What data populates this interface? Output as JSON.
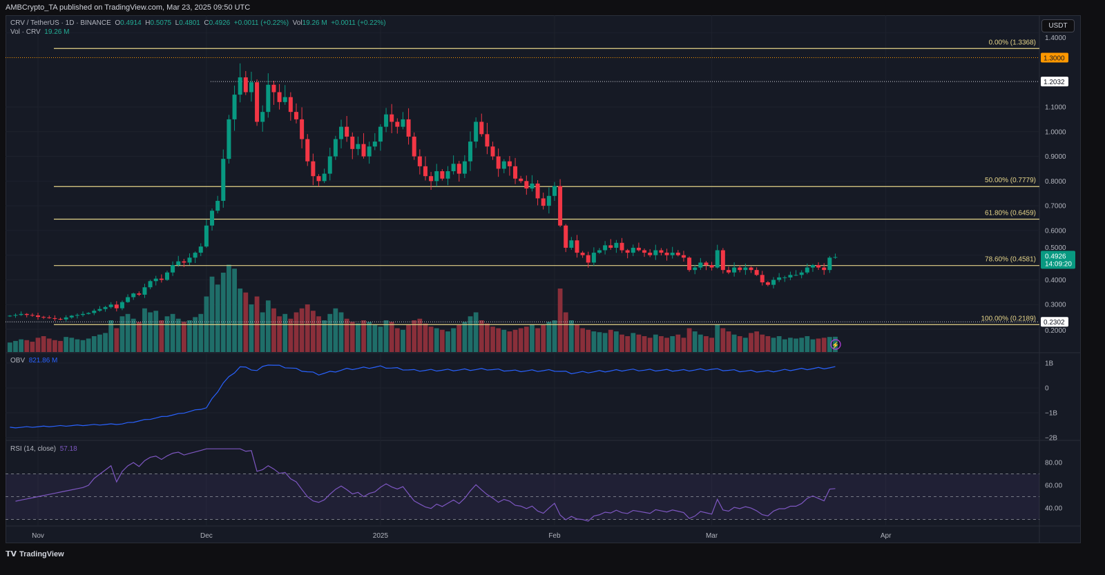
{
  "header": {
    "published": "AMBCrypto_TA published on TradingView.com, Mar 23, 2025 09:50 UTC"
  },
  "legend": {
    "symbol": "CRV / TetherUS · 1D · BINANCE",
    "o_label": "O",
    "o": "0.4914",
    "h_label": "H",
    "h": "0.5075",
    "l_label": "L",
    "l": "0.4801",
    "c_label": "C",
    "c": "0.4926",
    "change": "+0.0011 (+0.22%)",
    "vol_label": "Vol",
    "vol": "19.26 M",
    "vol_change": "+0.0011 (+0.22%)",
    "vol_line_label": "Vol · CRV",
    "vol_line_value": "19.26 M"
  },
  "currency_button": "USDT",
  "obv": {
    "label": "OBV",
    "value": "821.86 M",
    "ticks": [
      "1B",
      "0",
      "−1B",
      "−2B"
    ]
  },
  "rsi": {
    "label": "RSI (14, close)",
    "value": "57.18",
    "ticks": [
      "80.00",
      "60.00",
      "40.00"
    ]
  },
  "price_axis": {
    "ticks": [
      "1.4000",
      "1.1000",
      "1.0000",
      "0.9000",
      "0.8000",
      "0.7000",
      "0.6000",
      "0.5000",
      "0.4000",
      "0.3000",
      "0.2000"
    ],
    "tick_values": [
      1.4,
      1.1,
      1.0,
      0.9,
      0.8,
      0.7,
      0.6,
      0.5,
      0.4,
      0.3,
      0.2
    ]
  },
  "price_tags": [
    {
      "text": "1.3000",
      "value": 1.3,
      "bg": "#ff9800",
      "fg": "#131722"
    },
    {
      "text": "1.2032",
      "value": 1.2032,
      "bg": "#ffffff",
      "fg": "#131722"
    },
    {
      "text": "0.2302",
      "value": 0.2302,
      "bg": "#ffffff",
      "fg": "#131722"
    }
  ],
  "last_price": {
    "text": "0.4926",
    "countdown": "14:09:20",
    "value": 0.4926,
    "bg": "#089981"
  },
  "fib_levels": [
    {
      "label": "0.00% (1.3368)",
      "value": 1.3368
    },
    {
      "label": "50.00% (0.7779)",
      "value": 0.7779
    },
    {
      "label": "61.80% (0.6459)",
      "value": 0.6459
    },
    {
      "label": "78.60% (0.4581)",
      "value": 0.4581
    },
    {
      "label": "100.00% (0.2189)",
      "value": 0.2189
    }
  ],
  "time_axis": [
    {
      "label": "Nov",
      "day": 5
    },
    {
      "label": "Dec",
      "day": 35
    },
    {
      "label": "2025",
      "day": 66
    },
    {
      "label": "Feb",
      "day": 97
    },
    {
      "label": "Mar",
      "day": 125
    },
    {
      "label": "Apr",
      "day": 156
    }
  ],
  "footer": {
    "brand": "TradingView"
  },
  "colors": {
    "up": "#089981",
    "down": "#f23645",
    "vol_up": "#1f6e69",
    "vol_down": "#8a2f3a",
    "fib": "#e6d58a",
    "obv": "#2962ff",
    "rsi": "#7e57c2"
  },
  "chart_data": {
    "type": "candlestick",
    "start_date": "2024-10-27",
    "interval": "1D",
    "close": [
      0.255,
      0.258,
      0.262,
      0.258,
      0.256,
      0.25,
      0.248,
      0.245,
      0.242,
      0.24,
      0.248,
      0.255,
      0.258,
      0.262,
      0.266,
      0.275,
      0.282,
      0.29,
      0.3,
      0.285,
      0.31,
      0.33,
      0.345,
      0.34,
      0.37,
      0.395,
      0.405,
      0.4,
      0.43,
      0.46,
      0.475,
      0.47,
      0.49,
      0.51,
      0.535,
      0.62,
      0.68,
      0.72,
      0.89,
      1.05,
      1.15,
      1.22,
      1.16,
      1.2,
      1.04,
      1.08,
      1.19,
      1.16,
      1.12,
      1.14,
      1.08,
      1.05,
      0.97,
      0.88,
      0.82,
      0.8,
      0.83,
      0.9,
      0.97,
      1.02,
      0.98,
      0.93,
      0.95,
      0.9,
      0.94,
      0.96,
      1.02,
      1.07,
      1.04,
      1.02,
      1.05,
      0.98,
      0.9,
      0.86,
      0.82,
      0.8,
      0.84,
      0.81,
      0.84,
      0.87,
      0.83,
      0.88,
      0.96,
      1.04,
      0.99,
      0.94,
      0.9,
      0.85,
      0.88,
      0.86,
      0.81,
      0.8,
      0.77,
      0.79,
      0.73,
      0.7,
      0.74,
      0.78,
      0.62,
      0.53,
      0.56,
      0.51,
      0.5,
      0.47,
      0.51,
      0.52,
      0.54,
      0.53,
      0.55,
      0.52,
      0.51,
      0.53,
      0.52,
      0.51,
      0.5,
      0.52,
      0.51,
      0.5,
      0.51,
      0.5,
      0.49,
      0.44,
      0.45,
      0.47,
      0.46,
      0.45,
      0.52,
      0.44,
      0.43,
      0.45,
      0.44,
      0.45,
      0.44,
      0.42,
      0.39,
      0.38,
      0.4,
      0.41,
      0.41,
      0.42,
      0.42,
      0.43,
      0.45,
      0.46,
      0.45,
      0.44,
      0.49,
      0.4926
    ],
    "volume_m": [
      12,
      14,
      16,
      15,
      13,
      18,
      20,
      17,
      15,
      14,
      19,
      18,
      16,
      15,
      17,
      20,
      22,
      24,
      40,
      30,
      45,
      48,
      42,
      38,
      55,
      50,
      52,
      40,
      45,
      48,
      42,
      38,
      40,
      44,
      48,
      70,
      95,
      85,
      100,
      110,
      105,
      80,
      75,
      60,
      70,
      50,
      65,
      55,
      45,
      48,
      42,
      50,
      55,
      60,
      52,
      45,
      40,
      48,
      55,
      50,
      42,
      38,
      36,
      40,
      38,
      35,
      32,
      40,
      38,
      30,
      28,
      35,
      40,
      42,
      36,
      32,
      30,
      28,
      26,
      30,
      34,
      38,
      45,
      50,
      40,
      36,
      32,
      30,
      28,
      26,
      28,
      30,
      32,
      35,
      30,
      34,
      38,
      40,
      80,
      50,
      40,
      35,
      30,
      28,
      26,
      25,
      24,
      28,
      26,
      22,
      20,
      24,
      22,
      20,
      18,
      22,
      20,
      18,
      20,
      22,
      18,
      30,
      26,
      22,
      20,
      18,
      35,
      30,
      26,
      22,
      20,
      18,
      24,
      26,
      22,
      20,
      18,
      20,
      16,
      18,
      17,
      18,
      20,
      16,
      17,
      18,
      19,
      19.26
    ],
    "obv_b": {
      "days": [
        0,
        20,
        30,
        35,
        38,
        41,
        44,
        46,
        50,
        55,
        60,
        66,
        72,
        80,
        85,
        90,
        97,
        100,
        110,
        120,
        125,
        130,
        135,
        140,
        147
      ],
      "values": [
        -1.6,
        -1.45,
        -1.05,
        -0.8,
        0.2,
        0.85,
        0.7,
        0.95,
        0.8,
        0.55,
        0.75,
        0.85,
        0.7,
        0.72,
        0.75,
        0.68,
        0.7,
        0.6,
        0.72,
        0.7,
        0.75,
        0.68,
        0.66,
        0.74,
        0.82
      ]
    },
    "rsi_range": [
      30,
      70
    ]
  }
}
